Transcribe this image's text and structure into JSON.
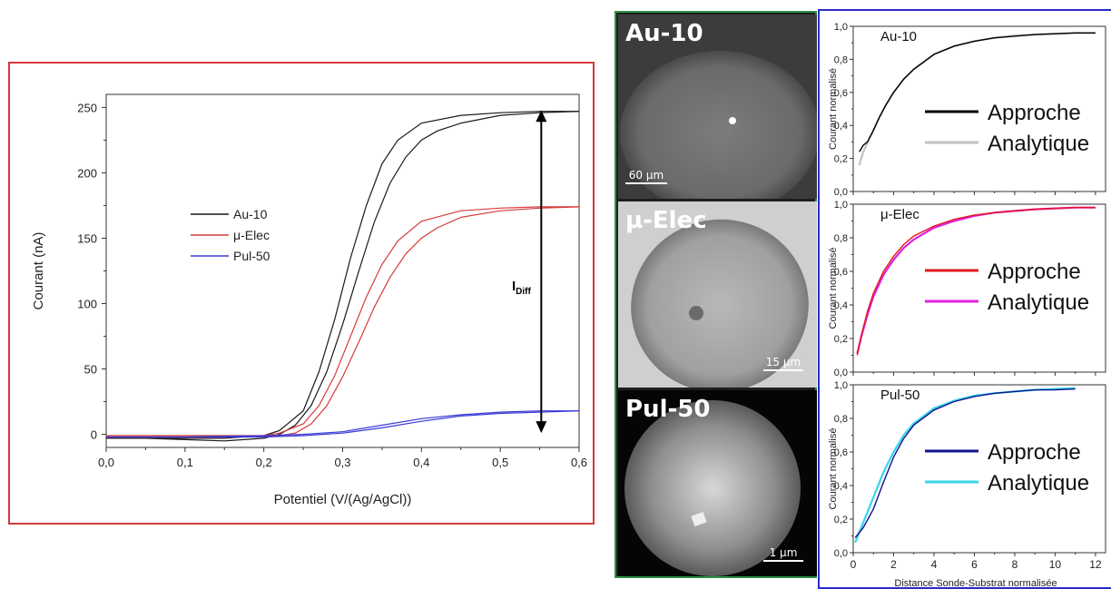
{
  "chart_data": [
    {
      "type": "line",
      "xlabel": "Potentiel (V/(Ag/AgCl))",
      "ylabel": "Courant (nA)",
      "xlim": [
        0.0,
        0.6
      ],
      "ylim": [
        -10,
        260
      ],
      "xticks": [
        "0,0",
        "0,1",
        "0,2",
        "0,3",
        "0,4",
        "0,5",
        "0,6"
      ],
      "yticks": [
        "0",
        "50",
        "100",
        "150",
        "200",
        "250"
      ],
      "legend_position": "center-left",
      "annotation": {
        "main": "I",
        "sub": "Diff",
        "x": 0.552,
        "y_top": 248,
        "y_bottom": 1
      },
      "series": [
        {
          "name": "Au-10",
          "color": "#1a1a1a",
          "forward": [
            [
              0.0,
              -3
            ],
            [
              0.1,
              -3
            ],
            [
              0.15,
              -3
            ],
            [
              0.2,
              -1
            ],
            [
              0.22,
              3
            ],
            [
              0.25,
              18
            ],
            [
              0.27,
              48
            ],
            [
              0.29,
              88
            ],
            [
              0.31,
              135
            ],
            [
              0.33,
              175
            ],
            [
              0.35,
              207
            ],
            [
              0.37,
              225
            ],
            [
              0.4,
              238
            ],
            [
              0.45,
              244
            ],
            [
              0.5,
              246
            ],
            [
              0.55,
              247
            ],
            [
              0.6,
              247
            ]
          ],
          "reverse": [
            [
              0.6,
              247
            ],
            [
              0.55,
              246
            ],
            [
              0.5,
              244
            ],
            [
              0.45,
              238
            ],
            [
              0.42,
              232
            ],
            [
              0.4,
              225
            ],
            [
              0.38,
              212
            ],
            [
              0.36,
              192
            ],
            [
              0.34,
              162
            ],
            [
              0.32,
              124
            ],
            [
              0.3,
              84
            ],
            [
              0.28,
              48
            ],
            [
              0.26,
              22
            ],
            [
              0.24,
              7
            ],
            [
              0.22,
              0
            ],
            [
              0.2,
              -3
            ],
            [
              0.15,
              -5
            ],
            [
              0.1,
              -4
            ],
            [
              0.05,
              -3
            ],
            [
              0.0,
              -3
            ]
          ]
        },
        {
          "name": "μ-Elec",
          "color": "#d63a3a",
          "forward": [
            [
              0.0,
              -1
            ],
            [
              0.15,
              -1
            ],
            [
              0.2,
              -1
            ],
            [
              0.22,
              1
            ],
            [
              0.25,
              8
            ],
            [
              0.27,
              22
            ],
            [
              0.29,
              45
            ],
            [
              0.31,
              75
            ],
            [
              0.33,
              105
            ],
            [
              0.35,
              130
            ],
            [
              0.37,
              148
            ],
            [
              0.4,
              163
            ],
            [
              0.45,
              171
            ],
            [
              0.5,
              173
            ],
            [
              0.55,
              174
            ],
            [
              0.6,
              174
            ]
          ],
          "reverse": [
            [
              0.6,
              174
            ],
            [
              0.55,
              173
            ],
            [
              0.5,
              171
            ],
            [
              0.45,
              166
            ],
            [
              0.42,
              158
            ],
            [
              0.4,
              150
            ],
            [
              0.38,
              138
            ],
            [
              0.36,
              120
            ],
            [
              0.34,
              97
            ],
            [
              0.32,
              70
            ],
            [
              0.3,
              44
            ],
            [
              0.28,
              22
            ],
            [
              0.26,
              8
            ],
            [
              0.24,
              1
            ],
            [
              0.22,
              -1
            ],
            [
              0.15,
              -2
            ],
            [
              0.0,
              -2
            ]
          ]
        },
        {
          "name": "Pul-50",
          "color": "#3a3ad6",
          "forward": [
            [
              0.0,
              -2
            ],
            [
              0.1,
              -2
            ],
            [
              0.2,
              -1
            ],
            [
              0.25,
              0
            ],
            [
              0.3,
              2
            ],
            [
              0.35,
              7
            ],
            [
              0.4,
              12
            ],
            [
              0.45,
              15
            ],
            [
              0.5,
              17
            ],
            [
              0.55,
              18
            ],
            [
              0.6,
              18
            ]
          ],
          "reverse": [
            [
              0.6,
              18
            ],
            [
              0.55,
              17
            ],
            [
              0.5,
              16
            ],
            [
              0.45,
              14
            ],
            [
              0.4,
              10
            ],
            [
              0.35,
              5
            ],
            [
              0.3,
              1
            ],
            [
              0.25,
              -1
            ],
            [
              0.2,
              -2
            ],
            [
              0.1,
              -2
            ],
            [
              0.0,
              -2
            ]
          ]
        }
      ]
    },
    {
      "type": "line",
      "panel_title": "Au-10",
      "ylabel": "Courant normalisé",
      "xlim": [
        0,
        12.5
      ],
      "ylim": [
        0,
        1.0
      ],
      "yticks": [
        "0,0",
        "0,2",
        "0,4",
        "0,6",
        "0,8",
        "1,0"
      ],
      "legend_position": "center-right",
      "series": [
        {
          "name": "Approche",
          "color": "#000000",
          "points": [
            [
              0.3,
              0.24
            ],
            [
              0.5,
              0.28
            ],
            [
              0.7,
              0.3
            ],
            [
              1.0,
              0.37
            ],
            [
              1.3,
              0.45
            ],
            [
              1.6,
              0.52
            ],
            [
              2,
              0.6
            ],
            [
              2.5,
              0.68
            ],
            [
              3,
              0.74
            ],
            [
              4,
              0.83
            ],
            [
              5,
              0.88
            ],
            [
              6,
              0.91
            ],
            [
              7,
              0.93
            ],
            [
              8,
              0.94
            ],
            [
              9,
              0.95
            ],
            [
              10,
              0.955
            ],
            [
              11,
              0.96
            ],
            [
              12,
              0.96
            ]
          ]
        },
        {
          "name": "Analytique",
          "color": "#c2c2c2",
          "points": [
            [
              0.3,
              0.16
            ],
            [
              0.5,
              0.24
            ],
            [
              0.8,
              0.32
            ],
            [
              1.0,
              0.37
            ],
            [
              1.3,
              0.45
            ],
            [
              1.6,
              0.52
            ],
            [
              2,
              0.6
            ],
            [
              2.5,
              0.68
            ],
            [
              3,
              0.74
            ],
            [
              4,
              0.83
            ],
            [
              5,
              0.88
            ],
            [
              6,
              0.91
            ],
            [
              7,
              0.93
            ],
            [
              8,
              0.945
            ],
            [
              9,
              0.95
            ],
            [
              10,
              0.955
            ],
            [
              11,
              0.96
            ],
            [
              12,
              0.96
            ]
          ]
        }
      ]
    },
    {
      "type": "line",
      "panel_title": "μ-Elec",
      "ylabel": "Courant normalisé",
      "xlim": [
        0,
        12.5
      ],
      "ylim": [
        0,
        1.0
      ],
      "yticks": [
        "0,0",
        "0,2",
        "0,4",
        "0,6",
        "0,8",
        "1,0"
      ],
      "legend_position": "center-right",
      "series": [
        {
          "name": "Approche",
          "color": "#e01a1a",
          "points": [
            [
              0.2,
              0.1
            ],
            [
              0.4,
              0.22
            ],
            [
              0.7,
              0.36
            ],
            [
              1,
              0.47
            ],
            [
              1.5,
              0.6
            ],
            [
              2,
              0.69
            ],
            [
              2.5,
              0.76
            ],
            [
              3,
              0.81
            ],
            [
              4,
              0.87
            ],
            [
              5,
              0.91
            ],
            [
              6,
              0.935
            ],
            [
              7,
              0.95
            ],
            [
              8,
              0.96
            ],
            [
              9,
              0.97
            ],
            [
              10,
              0.975
            ],
            [
              11,
              0.98
            ],
            [
              12,
              0.98
            ]
          ]
        },
        {
          "name": "Analytique",
          "color": "#e020e0",
          "points": [
            [
              0.2,
              0.11
            ],
            [
              0.4,
              0.21
            ],
            [
              0.7,
              0.34
            ],
            [
              1,
              0.45
            ],
            [
              1.5,
              0.58
            ],
            [
              2,
              0.67
            ],
            [
              2.5,
              0.74
            ],
            [
              3,
              0.79
            ],
            [
              4,
              0.86
            ],
            [
              5,
              0.9
            ],
            [
              6,
              0.93
            ],
            [
              7,
              0.95
            ],
            [
              8,
              0.96
            ],
            [
              9,
              0.97
            ],
            [
              10,
              0.975
            ],
            [
              11,
              0.98
            ],
            [
              12,
              0.98
            ]
          ]
        }
      ]
    },
    {
      "type": "line",
      "panel_title": "Pul-50",
      "xlabel": "Distance Sonde-Substrat normalisée",
      "ylabel": "Courant normalisé",
      "xlim": [
        0,
        12.5
      ],
      "ylim": [
        0,
        1.0
      ],
      "xticks": [
        "0",
        "2",
        "4",
        "6",
        "8",
        "10",
        "12"
      ],
      "yticks": [
        "0,0",
        "0,2",
        "0,4",
        "0,6",
        "0,8",
        "1,0"
      ],
      "legend_position": "center-right",
      "series": [
        {
          "name": "Approche",
          "color": "#12128c",
          "points": [
            [
              0.1,
              0.09
            ],
            [
              0.5,
              0.15
            ],
            [
              1,
              0.26
            ],
            [
              1.5,
              0.42
            ],
            [
              2,
              0.57
            ],
            [
              2.5,
              0.68
            ],
            [
              3,
              0.76
            ],
            [
              4,
              0.85
            ],
            [
              5,
              0.9
            ],
            [
              6,
              0.93
            ],
            [
              7,
              0.95
            ],
            [
              8,
              0.96
            ],
            [
              9,
              0.97
            ],
            [
              10,
              0.97
            ],
            [
              11,
              0.975
            ]
          ]
        },
        {
          "name": "Analytique",
          "color": "#36d6e6",
          "points": [
            [
              0.1,
              0.06
            ],
            [
              0.5,
              0.18
            ],
            [
              1,
              0.33
            ],
            [
              1.5,
              0.48
            ],
            [
              2,
              0.6
            ],
            [
              2.5,
              0.7
            ],
            [
              3,
              0.77
            ],
            [
              4,
              0.86
            ],
            [
              5,
              0.905
            ],
            [
              6,
              0.935
            ],
            [
              7,
              0.95
            ],
            [
              8,
              0.96
            ],
            [
              9,
              0.97
            ],
            [
              10,
              0.975
            ],
            [
              11,
              0.98
            ]
          ]
        }
      ]
    }
  ],
  "micrographs": [
    {
      "label": "Au-10",
      "scale": "60 µm",
      "shape": "oval-fiber"
    },
    {
      "label": "µ-Elec",
      "scale": "15 µm",
      "shape": "tilted-fiber"
    },
    {
      "label": "Pul-50",
      "scale": "1 µm",
      "shape": "disk"
    }
  ],
  "colors": {
    "left_frame": "#d33a3a",
    "middle_frame": "#2e9146",
    "right_frame": "#2a2ac8"
  }
}
